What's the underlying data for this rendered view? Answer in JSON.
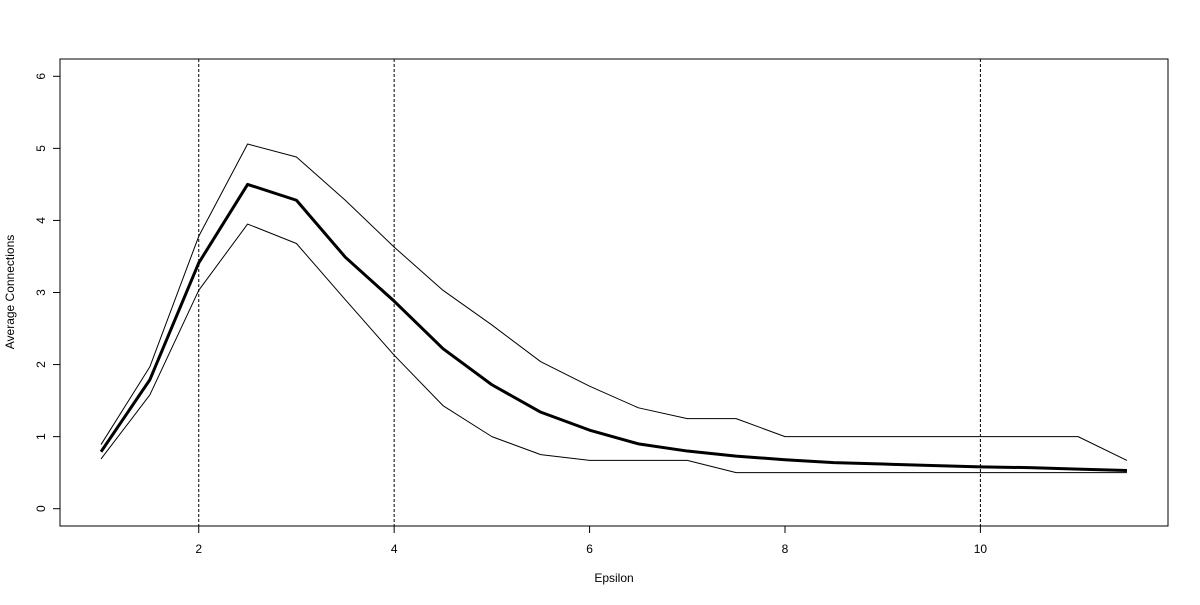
{
  "chart_data": {
    "type": "line",
    "xlabel": "Epsilon",
    "ylabel": "Average Connections",
    "x": [
      1,
      1.5,
      2,
      2.5,
      3,
      3.5,
      4,
      4.5,
      5,
      5.5,
      6,
      6.5,
      7,
      7.5,
      8,
      8.5,
      9,
      9.5,
      10,
      10.5,
      11,
      11.5
    ],
    "series": [
      {
        "color": "#000000",
        "line_width": 3,
        "values": [
          0.79,
          1.79,
          3.41,
          4.5,
          4.28,
          3.49,
          2.88,
          2.22,
          1.72,
          1.34,
          1.09,
          0.9,
          0.8,
          0.73,
          0.68,
          0.64,
          0.62,
          0.6,
          0.58,
          0.57,
          0.55,
          0.53
        ]
      },
      {
        "color": "#000000",
        "line_width": 1,
        "values": [
          0.89,
          1.97,
          3.78,
          5.06,
          4.88,
          4.28,
          3.63,
          3.03,
          2.55,
          2.04,
          1.7,
          1.4,
          1.25,
          1.25,
          1.0,
          1.0,
          1.0,
          1.0,
          1.0,
          1.0,
          1.0,
          0.67
        ]
      },
      {
        "color": "#000000",
        "line_width": 1,
        "values": [
          0.69,
          1.58,
          3.03,
          3.95,
          3.68,
          2.9,
          2.13,
          1.43,
          1.0,
          0.75,
          0.67,
          0.67,
          0.67,
          0.5,
          0.5,
          0.5,
          0.5,
          0.5,
          0.5,
          0.5,
          0.5,
          0.5
        ]
      }
    ],
    "vlines": [
      2,
      4,
      10
    ],
    "xlim": [
      0.58,
      11.92
    ],
    "ylim": [
      -0.24,
      6.24
    ],
    "xticks": [
      2,
      4,
      6,
      8,
      10
    ],
    "yticks": [
      0,
      1,
      2,
      3,
      4,
      5,
      6
    ]
  }
}
